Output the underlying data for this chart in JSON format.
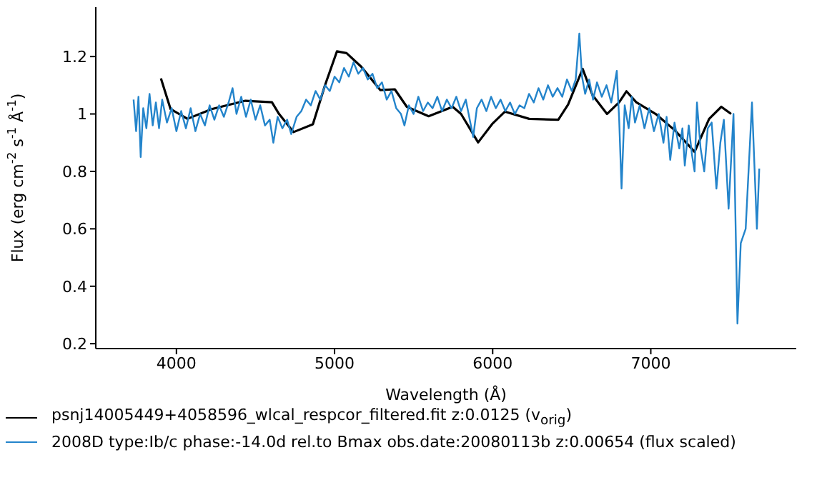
{
  "chart_data": {
    "type": "line",
    "xlabel": "Wavelength (Å)",
    "ylabel": "Flux (erg cm$^{-2}$ s$^{-1}$ Å$^{-1}$)",
    "xlim": [
      3490,
      7920
    ],
    "ylim": [
      0.183,
      1.372
    ],
    "xticks": [
      4000,
      5000,
      6000,
      7000
    ],
    "yticks": [
      0.2,
      0.4,
      0.6,
      0.8,
      1,
      1.2
    ],
    "grid": false,
    "legend": "bottom",
    "marker": "none",
    "line_style": "solid",
    "series": [
      {
        "name": "psnj14005449+4058596_wlcal_respcor_filtered.fit  z:0.0125 (v$_{orig}$)",
        "color": "#000000",
        "x": [
          3902,
          3963,
          4070,
          4223,
          4436,
          4604,
          4649,
          4741,
          4863,
          4939,
          5015,
          5076,
          5168,
          5290,
          5381,
          5457,
          5595,
          5747,
          5800,
          5908,
          6000,
          6077,
          6231,
          6415,
          6477,
          6569,
          6631,
          6723,
          6800,
          6846,
          6908,
          7031,
          7154,
          7277,
          7369,
          7446,
          7508
        ],
        "values": [
          1.124,
          1.017,
          0.983,
          1.017,
          1.046,
          1.041,
          1.0,
          0.937,
          0.964,
          1.099,
          1.218,
          1.212,
          1.165,
          1.083,
          1.086,
          1.025,
          0.992,
          1.025,
          1.0,
          0.901,
          0.967,
          1.008,
          0.983,
          0.98,
          1.033,
          1.157,
          1.066,
          1.0,
          1.041,
          1.079,
          1.041,
          1.0,
          0.942,
          0.868,
          0.983,
          1.025,
          1.0
        ]
      },
      {
        "name": "2008D  type:Ib/c  phase:-14.0d rel.to Bmax  obs.date:20080113b  z:0.00654  (flux scaled)",
        "color": "#2384cb",
        "x": [
          3729,
          3745,
          3760,
          3774,
          3790,
          3810,
          3830,
          3850,
          3870,
          3890,
          3910,
          3940,
          3970,
          4000,
          4030,
          4060,
          4090,
          4120,
          4150,
          4180,
          4210,
          4240,
          4270,
          4300,
          4330,
          4355,
          4380,
          4410,
          4440,
          4470,
          4500,
          4530,
          4560,
          4590,
          4613,
          4640,
          4670,
          4700,
          4726,
          4760,
          4790,
          4820,
          4850,
          4880,
          4910,
          4940,
          4970,
          5000,
          5030,
          5060,
          5090,
          5120,
          5150,
          5180,
          5210,
          5240,
          5270,
          5300,
          5330,
          5360,
          5390,
          5420,
          5442,
          5470,
          5500,
          5530,
          5560,
          5590,
          5620,
          5650,
          5680,
          5710,
          5740,
          5770,
          5800,
          5830,
          5855,
          5877,
          5900,
          5930,
          5960,
          5990,
          6020,
          6050,
          6080,
          6110,
          6140,
          6170,
          6200,
          6230,
          6260,
          6290,
          6320,
          6350,
          6380,
          6410,
          6440,
          6470,
          6500,
          6525,
          6548,
          6565,
          6585,
          6610,
          6635,
          6660,
          6690,
          6720,
          6750,
          6785,
          6800,
          6815,
          6835,
          6860,
          6880,
          6900,
          6930,
          6960,
          6990,
          7020,
          7050,
          7080,
          7100,
          7123,
          7150,
          7180,
          7200,
          7215,
          7240,
          7260,
          7277,
          7292,
          7315,
          7338,
          7360,
          7385,
          7415,
          7440,
          7462,
          7492,
          7523,
          7548,
          7569,
          7600,
          7640,
          7671,
          7686
        ],
        "values": [
          1.05,
          0.94,
          1.06,
          0.85,
          1.02,
          0.95,
          1.07,
          0.96,
          1.04,
          0.95,
          1.05,
          0.97,
          1.02,
          0.94,
          1.01,
          0.95,
          1.02,
          0.94,
          1.0,
          0.96,
          1.03,
          0.98,
          1.03,
          0.99,
          1.04,
          1.09,
          1.0,
          1.06,
          0.99,
          1.05,
          0.98,
          1.03,
          0.96,
          0.98,
          0.9,
          0.99,
          0.95,
          0.98,
          0.93,
          0.99,
          1.01,
          1.05,
          1.03,
          1.08,
          1.05,
          1.1,
          1.08,
          1.13,
          1.11,
          1.16,
          1.13,
          1.18,
          1.14,
          1.16,
          1.12,
          1.14,
          1.09,
          1.11,
          1.05,
          1.08,
          1.02,
          1.0,
          0.96,
          1.03,
          1.0,
          1.06,
          1.01,
          1.04,
          1.02,
          1.06,
          1.01,
          1.05,
          1.02,
          1.06,
          1.01,
          1.05,
          0.98,
          0.92,
          1.02,
          1.05,
          1.01,
          1.06,
          1.02,
          1.05,
          1.01,
          1.04,
          1.0,
          1.03,
          1.02,
          1.07,
          1.04,
          1.09,
          1.05,
          1.1,
          1.06,
          1.09,
          1.06,
          1.12,
          1.08,
          1.12,
          1.28,
          1.13,
          1.07,
          1.12,
          1.05,
          1.11,
          1.06,
          1.1,
          1.04,
          1.15,
          0.98,
          0.74,
          1.03,
          0.95,
          1.06,
          0.97,
          1.03,
          0.95,
          1.02,
          0.94,
          1.0,
          0.9,
          0.99,
          0.84,
          0.97,
          0.88,
          0.95,
          0.82,
          0.96,
          0.86,
          0.8,
          1.04,
          0.88,
          0.8,
          0.95,
          0.97,
          0.74,
          0.9,
          0.98,
          0.67,
          1.0,
          0.27,
          0.55,
          0.6,
          1.04,
          0.6,
          0.81
        ]
      }
    ]
  }
}
